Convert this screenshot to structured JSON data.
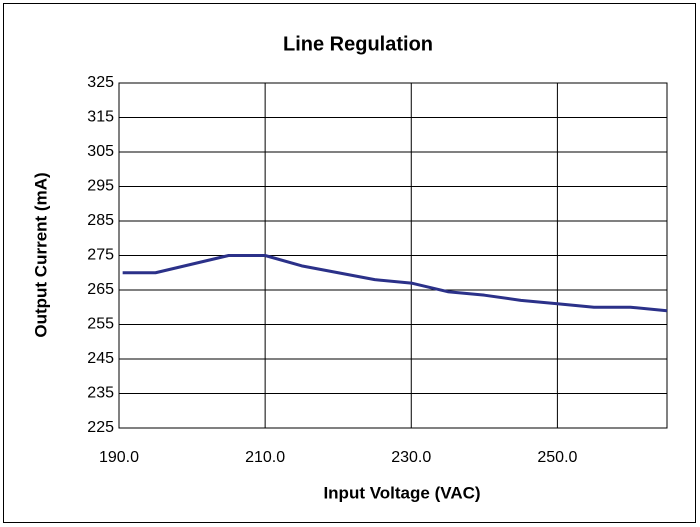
{
  "chart_data": {
    "type": "line",
    "title": "Line Regulation",
    "x_label": "Input Voltage (VAC)",
    "y_label": "Output Current (mA)",
    "x": [
      190.5,
      195,
      200,
      205,
      210,
      215,
      220,
      225,
      230,
      235,
      240,
      245,
      250,
      255,
      260,
      265
    ],
    "series": [
      {
        "name": "Output Current",
        "color": "#2b3189",
        "values": [
          270,
          270,
          272.5,
          275,
          275,
          272,
          270,
          268,
          267,
          264.5,
          263.5,
          262,
          261,
          260,
          260,
          259
        ]
      }
    ],
    "xlim": [
      190,
      265
    ],
    "xticks": [
      {
        "value": 190,
        "label": "190.0"
      },
      {
        "value": 210,
        "label": "210.0"
      },
      {
        "value": 230,
        "label": "230.0"
      },
      {
        "value": 250,
        "label": "250.0"
      }
    ],
    "ylim": [
      225,
      325
    ],
    "yticks": [
      225,
      235,
      245,
      255,
      265,
      275,
      285,
      295,
      305,
      315,
      325
    ],
    "grid": true
  }
}
